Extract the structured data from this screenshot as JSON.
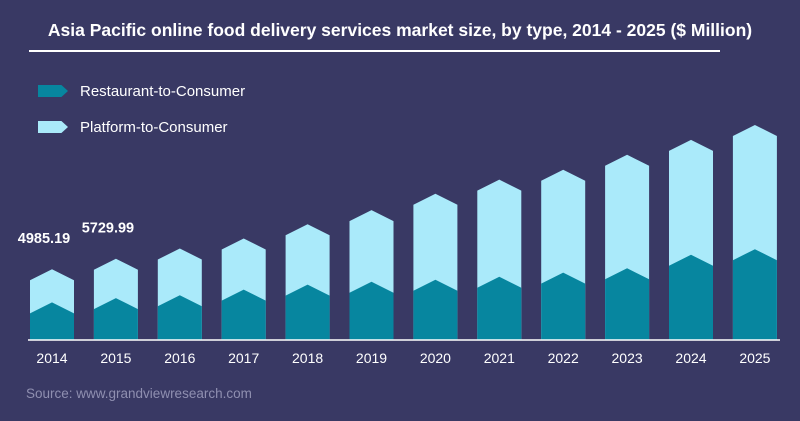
{
  "colors": {
    "background": "#393964",
    "restaurant": "#07869f",
    "platform": "#aaeafa",
    "axis": "#ffffff",
    "text": "#ffffff",
    "source": "#8f8fb0"
  },
  "source": "Source: www.grandviewresearch.com",
  "chart_data": {
    "type": "bar",
    "stacked": true,
    "title": "Asia Pacific online food delivery services market size, by type, 2014 - 2025 ($ Million)",
    "categories": [
      "2014",
      "2015",
      "2016",
      "2017",
      "2018",
      "2019",
      "2020",
      "2021",
      "2022",
      "2023",
      "2024",
      "2025"
    ],
    "series": [
      {
        "name": "Restaurant-to-Consumer",
        "values": [
          2650,
          2950,
          3150,
          3550,
          3900,
          4100,
          4250,
          4450,
          4750,
          5050,
          6000,
          6400
        ]
      },
      {
        "name": "Platform-to-Consumer",
        "values": [
          2335.19,
          2779.99,
          3300,
          3600,
          4250,
          5050,
          6050,
          6850,
          7250,
          8000,
          8100,
          8750
        ]
      }
    ],
    "data_labels": [
      {
        "category": "2014",
        "text": "4985.19"
      },
      {
        "category": "2015",
        "text": "5729.99"
      }
    ],
    "ylim": [
      0,
      15500
    ],
    "xlabel": "",
    "ylabel": "",
    "grid": false,
    "legend_position": "top-left"
  }
}
